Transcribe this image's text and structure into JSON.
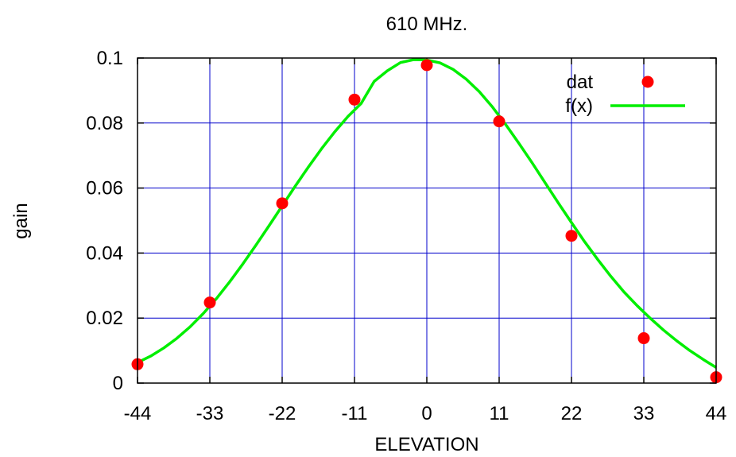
{
  "chart_data": {
    "type": "scatter",
    "title": "610 MHz.",
    "xlabel": "ELEVATION",
    "ylabel": "gain",
    "xlim": [
      -44,
      44
    ],
    "ylim": [
      0,
      0.1
    ],
    "xticks": [
      -44,
      -33,
      -22,
      -11,
      0,
      11,
      22,
      33,
      44
    ],
    "yticks": [
      0,
      0.02,
      0.04,
      0.06,
      0.08,
      0.1
    ],
    "ytick_labels": [
      "0",
      "0.02",
      "0.04",
      "0.06",
      "0.08",
      "0.1"
    ],
    "grid": true,
    "legend_position": "top-right",
    "series": [
      {
        "name": "dat",
        "kind": "points",
        "color": "#ff0000",
        "x": [
          -44,
          -33,
          -22,
          -11,
          0,
          11,
          22,
          33,
          44
        ],
        "y": [
          0.0058,
          0.0248,
          0.0553,
          0.0872,
          0.0978,
          0.0805,
          0.0453,
          0.0138,
          0.0018
        ]
      },
      {
        "name": "f(x)",
        "kind": "line",
        "color": "#00ee00",
        "x": [
          -44,
          -42,
          -40,
          -38,
          -36,
          -34,
          -32,
          -30,
          -28,
          -26,
          -24,
          -22,
          -20,
          -18,
          -16,
          -14,
          -12,
          -10,
          -8,
          -6,
          -4,
          -2,
          0,
          2,
          4,
          6,
          8,
          10,
          12,
          14,
          16,
          18,
          20,
          22,
          24,
          26,
          28,
          30,
          32,
          34,
          36,
          38,
          40,
          42,
          44
        ],
        "y": [
          0.0063,
          0.0083,
          0.0108,
          0.0138,
          0.0173,
          0.0214,
          0.026,
          0.0311,
          0.0366,
          0.0424,
          0.0484,
          0.0545,
          0.0606,
          0.0665,
          0.0721,
          0.0773,
          0.082,
          0.086,
          0.0928,
          0.0961,
          0.0986,
          0.0995,
          0.0994,
          0.0985,
          0.0965,
          0.0935,
          0.0896,
          0.0849,
          0.0795,
          0.0738,
          0.0678,
          0.0616,
          0.0554,
          0.0494,
          0.0435,
          0.038,
          0.0328,
          0.028,
          0.0238,
          0.0199,
          0.0163,
          0.013,
          0.01,
          0.0073,
          0.0048
        ]
      }
    ]
  }
}
